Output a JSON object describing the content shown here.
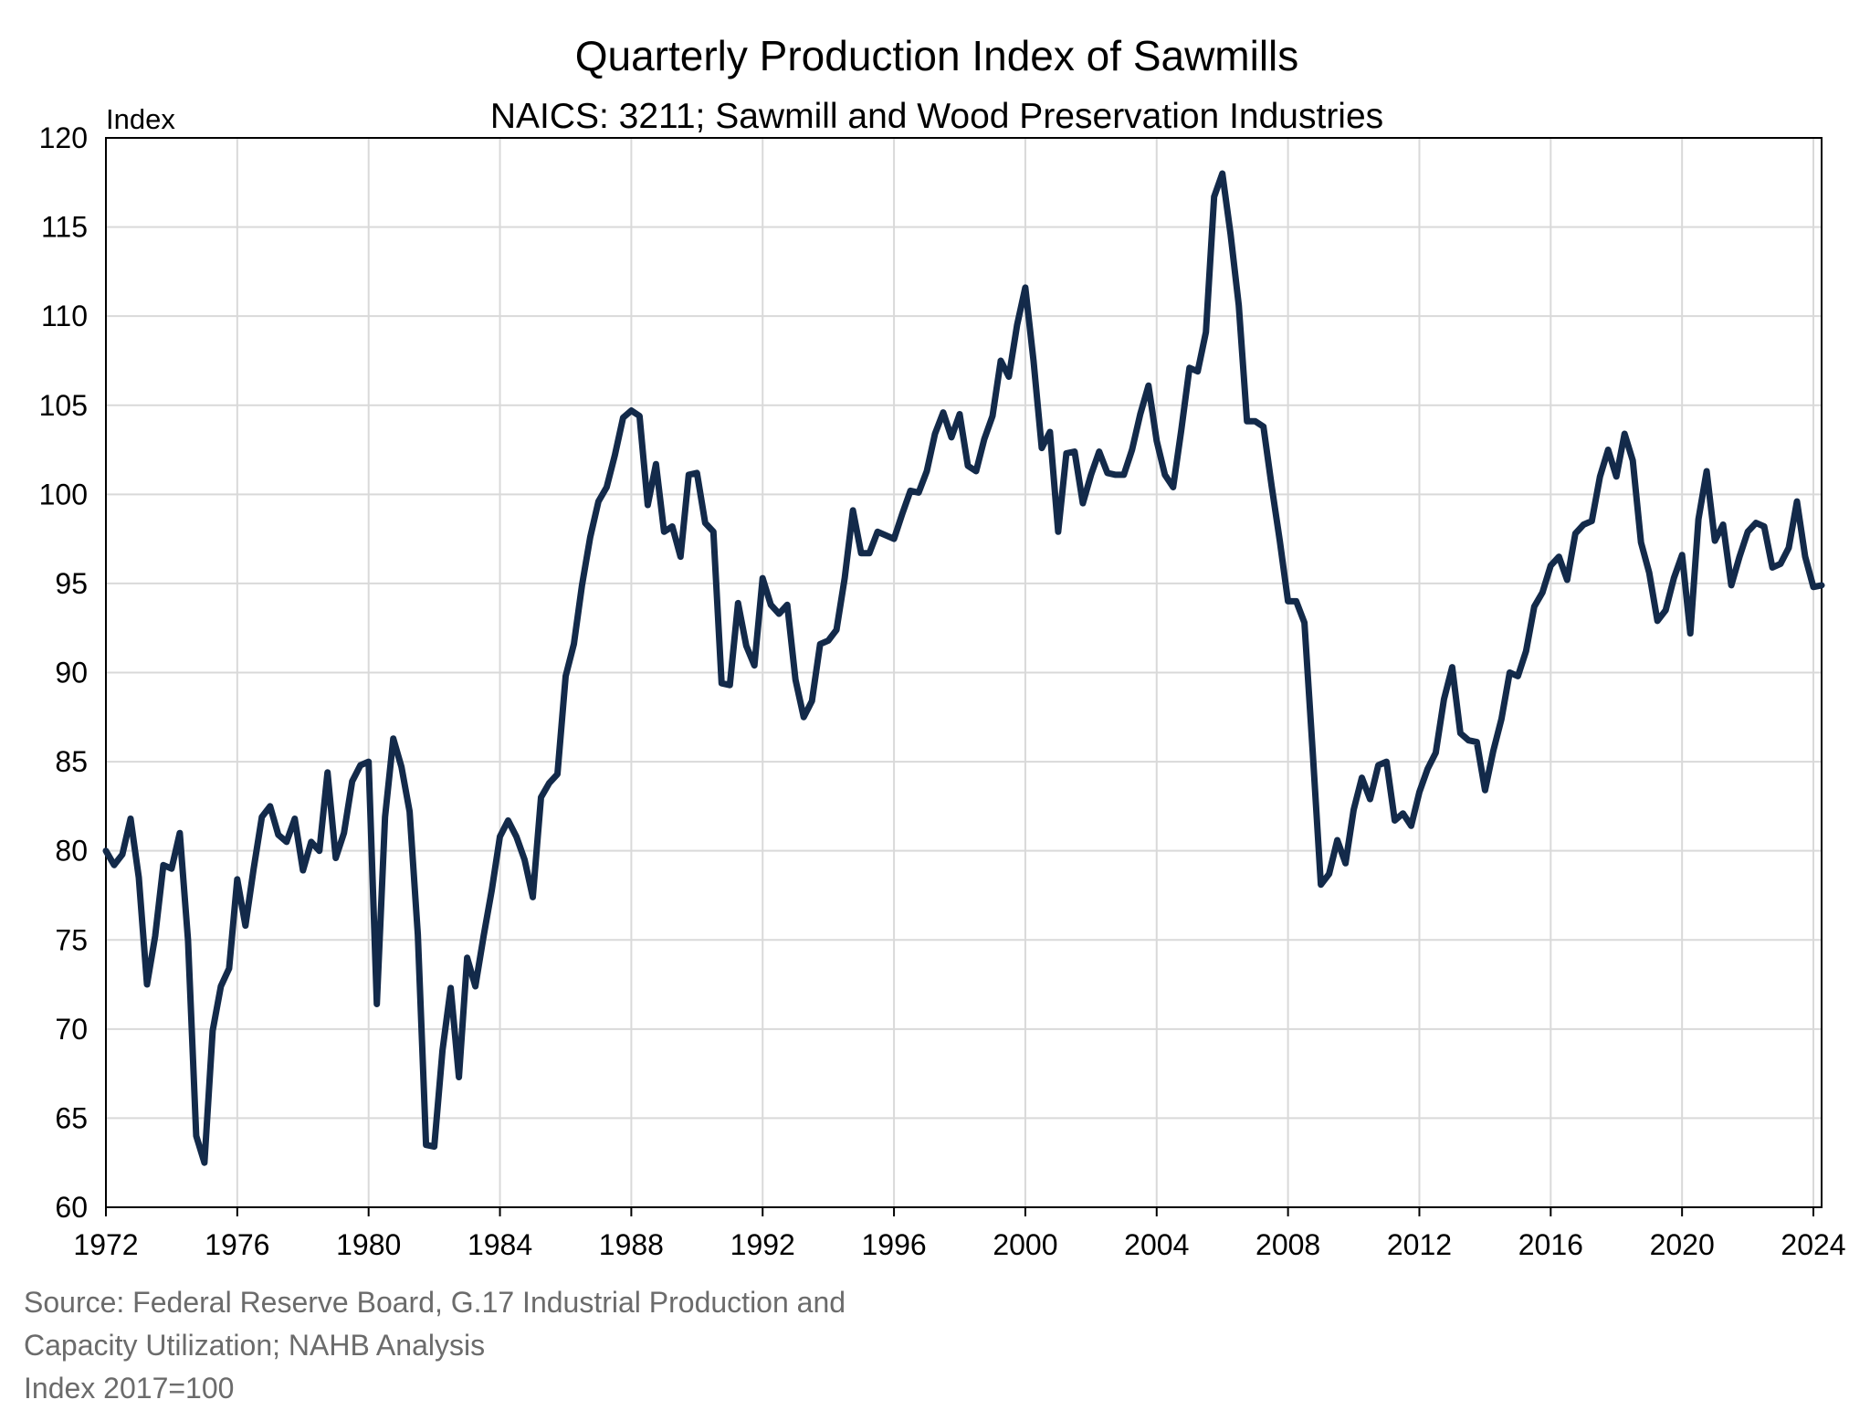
{
  "chart_data": {
    "type": "line",
    "title": "Quarterly Production Index of Sawmills",
    "subtitle": "NAICS: 3211; Sawmill and Wood Preservation Industries",
    "ylabel": "Index",
    "xlabel": "",
    "xlim": [
      1972,
      2024.25
    ],
    "ylim": [
      60,
      120
    ],
    "x_ticks": [
      "1972",
      "1976",
      "1980",
      "1984",
      "1988",
      "1992",
      "1996",
      "2000",
      "2004",
      "2008",
      "2012",
      "2016",
      "2020",
      "2024"
    ],
    "y_ticks": [
      "60",
      "65",
      "70",
      "75",
      "80",
      "85",
      "90",
      "95",
      "100",
      "105",
      "110",
      "115",
      "120"
    ],
    "grid": true,
    "legend": "none",
    "series": [
      {
        "color": "#132a4a",
        "x_start": 1972.0,
        "x_step": 0.25,
        "values": [
          80.0,
          79.2,
          79.8,
          81.8,
          78.5,
          72.5,
          75.2,
          79.2,
          79.0,
          81.0,
          75.0,
          64.0,
          62.5,
          69.9,
          72.4,
          73.4,
          78.4,
          75.8,
          79.0,
          81.9,
          82.5,
          80.9,
          80.5,
          81.8,
          78.9,
          80.5,
          80.0,
          84.4,
          79.6,
          81.0,
          83.9,
          84.8,
          85.0,
          71.4,
          81.9,
          86.3,
          84.7,
          82.2,
          75.3,
          63.5,
          63.4,
          68.8,
          72.3,
          67.3,
          74.0,
          72.4,
          75.2,
          77.8,
          80.8,
          81.7,
          80.8,
          79.5,
          77.4,
          83.0,
          83.8,
          84.3,
          89.8,
          91.6,
          94.9,
          97.6,
          99.6,
          100.4,
          102.2,
          104.3,
          104.7,
          104.4,
          99.4,
          101.7,
          97.9,
          98.2,
          96.5,
          101.1,
          101.2,
          98.4,
          97.9,
          89.4,
          89.3,
          93.9,
          91.5,
          90.4,
          95.3,
          93.8,
          93.3,
          93.8,
          89.6,
          87.5,
          88.4,
          91.6,
          91.8,
          92.4,
          95.3,
          99.1,
          96.7,
          96.7,
          97.9,
          97.7,
          97.5,
          98.9,
          100.2,
          100.1,
          101.3,
          103.4,
          104.6,
          103.2,
          104.5,
          101.6,
          101.3,
          103.1,
          104.4,
          107.5,
          106.6,
          109.5,
          111.6,
          107.5,
          102.6,
          103.5,
          97.9,
          102.3,
          102.4,
          99.5,
          101.1,
          102.4,
          101.2,
          101.1,
          101.1,
          102.5,
          104.5,
          106.1,
          103.0,
          101.1,
          100.4,
          103.6,
          107.1,
          106.9,
          109.1,
          116.7,
          118.0,
          114.6,
          110.6,
          104.1,
          104.1,
          103.8,
          100.5,
          97.4,
          94.0,
          94.0,
          92.8,
          85.6,
          78.1,
          78.7,
          80.6,
          79.3,
          82.3,
          84.1,
          82.9,
          84.8,
          85.0,
          81.7,
          82.1,
          81.4,
          83.3,
          84.6,
          85.5,
          88.5,
          90.3,
          86.6,
          86.2,
          86.1,
          83.4,
          85.6,
          87.4,
          90.0,
          89.8,
          91.2,
          93.7,
          94.5,
          96.0,
          96.5,
          95.2,
          97.8,
          98.3,
          98.5,
          101.0,
          102.5,
          101.0,
          103.4,
          101.9,
          97.3,
          95.6,
          92.9,
          93.5,
          95.3,
          96.6,
          92.2,
          98.6,
          101.3,
          97.4,
          98.3,
          94.9,
          96.5,
          97.9,
          98.4,
          98.2,
          95.9,
          96.1,
          97.0,
          99.6,
          96.5,
          94.8,
          94.9
        ]
      }
    ]
  },
  "footer": {
    "source_line1": "Source: Federal Reserve Board, G.17 Industrial Production and",
    "source_line2": "Capacity Utilization; NAHB Analysis",
    "base_note": "Index 2017=100"
  }
}
